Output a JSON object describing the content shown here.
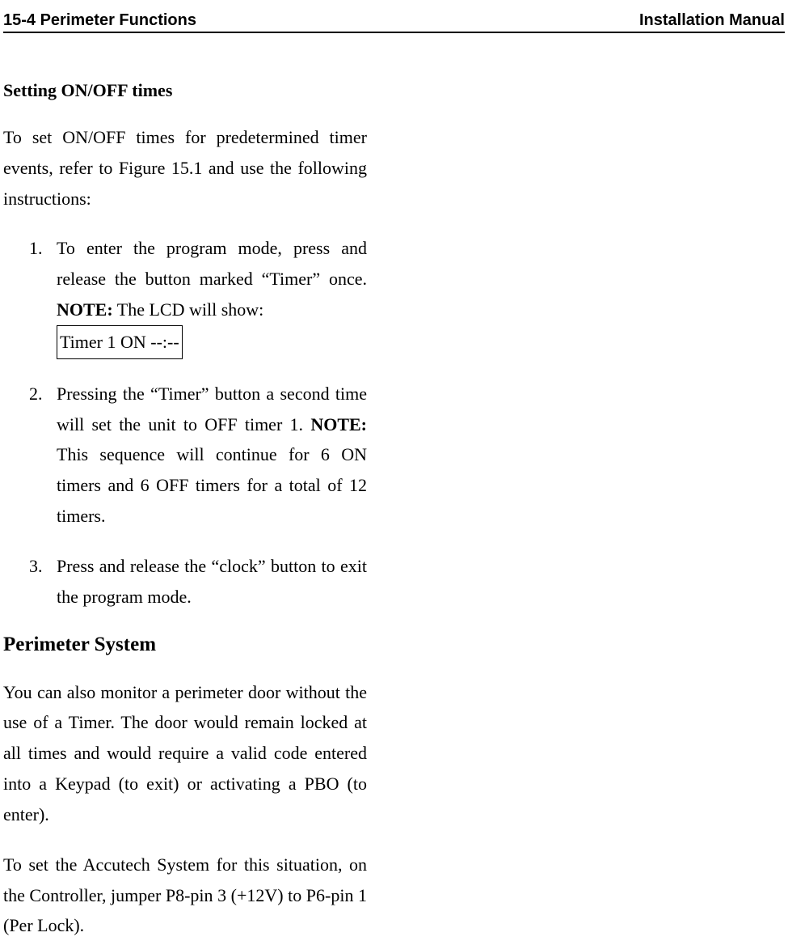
{
  "header": {
    "left": "15-4 Perimeter Functions",
    "right": "Installation Manual"
  },
  "section1": {
    "title": "Setting ON/OFF times",
    "intro": "To set ON/OFF times for predetermined timer events, refer to Figure 15.1 and use the following instructions:",
    "items": [
      {
        "number": "1.",
        "text_pre": "To enter the program mode, press and release the button marked “Timer” once. ",
        "note_label": "NOTE:",
        "note_text": " The LCD will show: ",
        "boxed_text": "Timer 1 ON --:--"
      },
      {
        "number": "2.",
        "text_pre": "Pressing the “Timer” button a second time will set the unit to OFF timer 1. ",
        "note_label": "NOTE:",
        "note_text": " This sequence will continue for 6 ON timers and 6 OFF timers for a total of 12 timers."
      },
      {
        "number": "3.",
        "text_pre": "Press and release the “clock” button to exit the program mode."
      }
    ]
  },
  "section2": {
    "title": "Perimeter System",
    "para1": "You can also monitor a perimeter door without the use of a Timer. The door would remain locked at all times and would require a valid code entered into a Keypad (to exit) or activating a PBO (to enter).",
    "para2": "To set the Accutech System for this situation, on the Controller, jumper P8-pin 3 (+12V) to P6-pin 1 (Per Lock)."
  }
}
